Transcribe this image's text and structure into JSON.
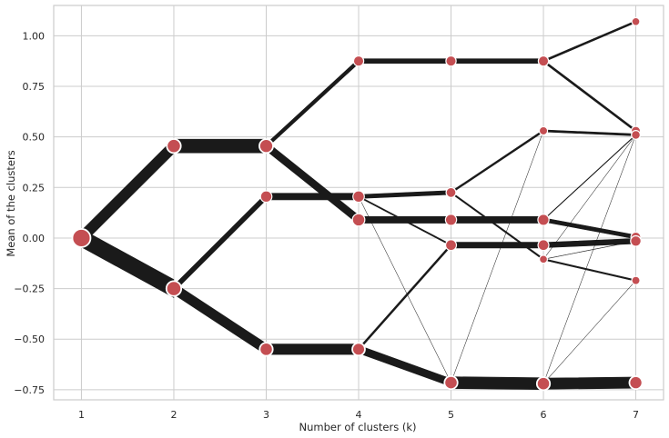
{
  "chart_data": {
    "type": "line",
    "xlabel": "Number of clusters (k)",
    "ylabel": "Mean of the clusters",
    "x_ticks": [
      1,
      2,
      3,
      4,
      5,
      6,
      7
    ],
    "y_ticks": [
      -0.75,
      -0.5,
      -0.25,
      0.0,
      0.25,
      0.5,
      0.75,
      1.0
    ],
    "y_tick_labels": [
      "−0.75",
      "−0.50",
      "−0.25",
      "0.00",
      "0.25",
      "0.50",
      "0.75",
      "1.00"
    ],
    "xlim": [
      0.7,
      7.3
    ],
    "ylim": [
      -0.8,
      1.15
    ],
    "grid": true,
    "colors": {
      "background": "#ffffff",
      "grid": "#cccccc",
      "edge": "#1a1a1a",
      "node_fill": "#c44e52",
      "node_stroke": "#ffffff"
    },
    "nodes": [
      {
        "k": 1,
        "mean": 0.0,
        "weight": 1.0
      },
      {
        "k": 2,
        "mean": 0.455,
        "weight": 0.45
      },
      {
        "k": 2,
        "mean": -0.25,
        "weight": 0.55
      },
      {
        "k": 3,
        "mean": 0.455,
        "weight": 0.42
      },
      {
        "k": 3,
        "mean": 0.205,
        "weight": 0.22
      },
      {
        "k": 3,
        "mean": -0.55,
        "weight": 0.36
      },
      {
        "k": 4,
        "mean": 0.875,
        "weight": 0.14
      },
      {
        "k": 4,
        "mean": 0.205,
        "weight": 0.22
      },
      {
        "k": 4,
        "mean": 0.09,
        "weight": 0.3
      },
      {
        "k": 4,
        "mean": -0.55,
        "weight": 0.32
      },
      {
        "k": 5,
        "mean": 0.875,
        "weight": 0.14
      },
      {
        "k": 5,
        "mean": 0.225,
        "weight": 0.12
      },
      {
        "k": 5,
        "mean": 0.09,
        "weight": 0.2
      },
      {
        "k": 5,
        "mean": -0.035,
        "weight": 0.18
      },
      {
        "k": 5,
        "mean": -0.715,
        "weight": 0.36
      },
      {
        "k": 6,
        "mean": 0.875,
        "weight": 0.14
      },
      {
        "k": 6,
        "mean": 0.53,
        "weight": 0.05
      },
      {
        "k": 6,
        "mean": 0.09,
        "weight": 0.2
      },
      {
        "k": 6,
        "mean": -0.035,
        "weight": 0.18
      },
      {
        "k": 6,
        "mean": -0.105,
        "weight": 0.04
      },
      {
        "k": 6,
        "mean": -0.72,
        "weight": 0.36
      },
      {
        "k": 7,
        "mean": 1.07,
        "weight": 0.04
      },
      {
        "k": 7,
        "mean": 0.53,
        "weight": 0.08
      },
      {
        "k": 7,
        "mean": 0.51,
        "weight": 0.07
      },
      {
        "k": 7,
        "mean": 0.005,
        "weight": 0.12
      },
      {
        "k": 7,
        "mean": -0.015,
        "weight": 0.16
      },
      {
        "k": 7,
        "mean": -0.21,
        "weight": 0.05
      },
      {
        "k": 7,
        "mean": -0.715,
        "weight": 0.34
      }
    ],
    "edges": [
      {
        "from": [
          1,
          0.0
        ],
        "to": [
          2,
          0.455
        ],
        "weight": 0.45
      },
      {
        "from": [
          1,
          0.0
        ],
        "to": [
          2,
          -0.25
        ],
        "weight": 0.55
      },
      {
        "from": [
          2,
          0.455
        ],
        "to": [
          3,
          0.455
        ],
        "weight": 0.42
      },
      {
        "from": [
          2,
          -0.25
        ],
        "to": [
          3,
          0.205
        ],
        "weight": 0.2
      },
      {
        "from": [
          2,
          -0.25
        ],
        "to": [
          3,
          -0.55
        ],
        "weight": 0.35
      },
      {
        "from": [
          3,
          0.455
        ],
        "to": [
          4,
          0.875
        ],
        "weight": 0.14
      },
      {
        "from": [
          3,
          0.455
        ],
        "to": [
          4,
          0.09
        ],
        "weight": 0.28
      },
      {
        "from": [
          3,
          0.205
        ],
        "to": [
          4,
          0.205
        ],
        "weight": 0.2
      },
      {
        "from": [
          3,
          -0.55
        ],
        "to": [
          4,
          -0.55
        ],
        "weight": 0.32
      },
      {
        "from": [
          4,
          0.875
        ],
        "to": [
          5,
          0.875
        ],
        "weight": 0.14
      },
      {
        "from": [
          4,
          0.205
        ],
        "to": [
          5,
          0.225
        ],
        "weight": 0.12
      },
      {
        "from": [
          4,
          0.205
        ],
        "to": [
          5,
          -0.035
        ],
        "weight": 0.04
      },
      {
        "from": [
          4,
          0.205
        ],
        "to": [
          5,
          -0.715
        ],
        "weight": 0.005
      },
      {
        "from": [
          4,
          0.09
        ],
        "to": [
          5,
          0.09
        ],
        "weight": 0.2
      },
      {
        "from": [
          4,
          -0.55
        ],
        "to": [
          5,
          -0.035
        ],
        "weight": 0.08
      },
      {
        "from": [
          4,
          -0.55
        ],
        "to": [
          5,
          -0.715
        ],
        "weight": 0.24
      },
      {
        "from": [
          5,
          0.875
        ],
        "to": [
          6,
          0.875
        ],
        "weight": 0.14
      },
      {
        "from": [
          5,
          0.225
        ],
        "to": [
          6,
          0.53
        ],
        "weight": 0.06
      },
      {
        "from": [
          5,
          0.225
        ],
        "to": [
          6,
          -0.105
        ],
        "weight": 0.05
      },
      {
        "from": [
          5,
          0.09
        ],
        "to": [
          6,
          0.09
        ],
        "weight": 0.2
      },
      {
        "from": [
          5,
          -0.035
        ],
        "to": [
          6,
          -0.035
        ],
        "weight": 0.18
      },
      {
        "from": [
          5,
          -0.715
        ],
        "to": [
          6,
          -0.72
        ],
        "weight": 0.36
      },
      {
        "from": [
          5,
          -0.715
        ],
        "to": [
          6,
          0.53
        ],
        "weight": 0.003
      },
      {
        "from": [
          6,
          0.875
        ],
        "to": [
          7,
          1.07
        ],
        "weight": 0.06
      },
      {
        "from": [
          6,
          0.875
        ],
        "to": [
          7,
          0.53
        ],
        "weight": 0.07
      },
      {
        "from": [
          6,
          0.53
        ],
        "to": [
          7,
          0.51
        ],
        "weight": 0.06
      },
      {
        "from": [
          6,
          0.09
        ],
        "to": [
          7,
          0.51
        ],
        "weight": 0.02
      },
      {
        "from": [
          6,
          0.09
        ],
        "to": [
          7,
          0.005
        ],
        "weight": 0.12
      },
      {
        "from": [
          6,
          -0.035
        ],
        "to": [
          7,
          -0.015
        ],
        "weight": 0.16
      },
      {
        "from": [
          6,
          -0.105
        ],
        "to": [
          7,
          -0.21
        ],
        "weight": 0.04
      },
      {
        "from": [
          6,
          -0.105
        ],
        "to": [
          7,
          0.51
        ],
        "weight": 0.003
      },
      {
        "from": [
          6,
          -0.105
        ],
        "to": [
          7,
          -0.015
        ],
        "weight": 0.003
      },
      {
        "from": [
          6,
          -0.72
        ],
        "to": [
          7,
          -0.715
        ],
        "weight": 0.34
      },
      {
        "from": [
          6,
          -0.72
        ],
        "to": [
          7,
          -0.21
        ],
        "weight": 0.005
      },
      {
        "from": [
          6,
          -0.72
        ],
        "to": [
          7,
          0.51
        ],
        "weight": 0.003
      }
    ]
  }
}
